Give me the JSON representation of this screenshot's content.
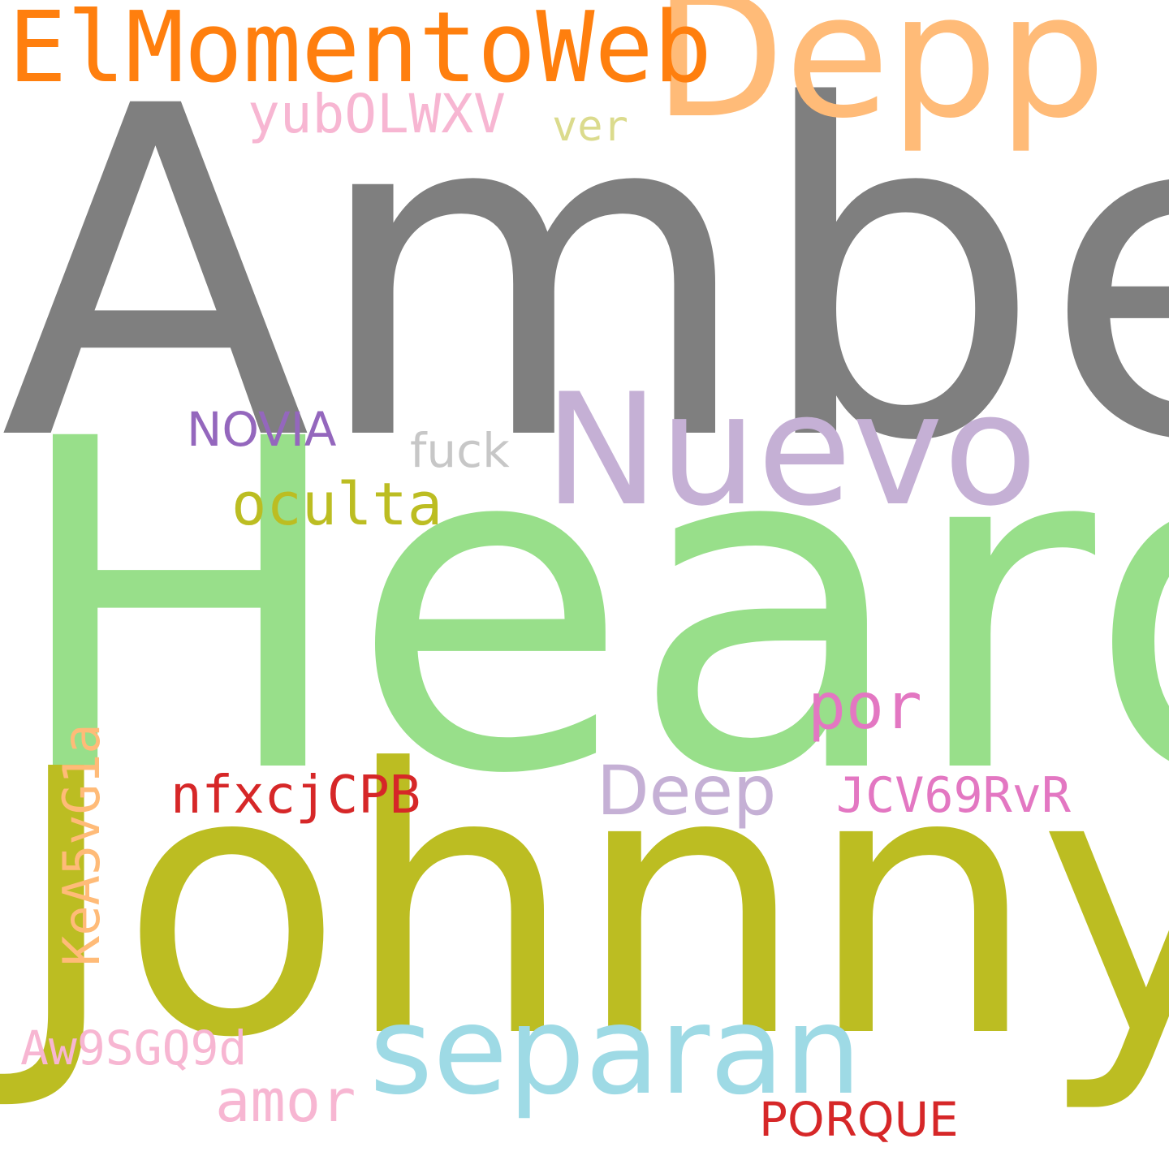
{
  "words": [
    {
      "key": "amber",
      "text": "Amber",
      "color": "#7f7f7f"
    },
    {
      "key": "heard",
      "text": "Heard",
      "color": "#98df8a"
    },
    {
      "key": "johnny",
      "text": "Johnny",
      "color": "#bcbd22"
    },
    {
      "key": "depp",
      "text": "Depp",
      "color": "#ffbb78"
    },
    {
      "key": "elmom",
      "text": "ElMomentoWeb",
      "color": "#ff7f0e"
    },
    {
      "key": "nuevo",
      "text": "Nuevo",
      "color": "#c5b0d5"
    },
    {
      "key": "separan",
      "text": "separan",
      "color": "#9edae5"
    },
    {
      "key": "yub",
      "text": "yubOLWXV",
      "color": "#f7b6d2"
    },
    {
      "key": "ver",
      "text": "ver",
      "color": "#dbdb8d"
    },
    {
      "key": "novia",
      "text": "NOVIA",
      "color": "#9467bd"
    },
    {
      "key": "fuck",
      "text": "fuck",
      "color": "#c7c7c7"
    },
    {
      "key": "oculta",
      "text": "oculta",
      "color": "#bcbd22"
    },
    {
      "key": "por",
      "text": "por",
      "color": "#e377c2"
    },
    {
      "key": "deep",
      "text": "Deep",
      "color": "#c5b0d5"
    },
    {
      "key": "nfx",
      "text": "nfxcjCPB",
      "color": "#d62728"
    },
    {
      "key": "jcv",
      "text": "JCV69RvR",
      "color": "#e377c2"
    },
    {
      "key": "kea",
      "text": "KeA5vG1a",
      "color": "#ffbb78"
    },
    {
      "key": "aw9",
      "text": "Aw9SGQ9d",
      "color": "#f7b6d2"
    },
    {
      "key": "amor",
      "text": "amor",
      "color": "#f7b6d2"
    },
    {
      "key": "porque",
      "text": "PORQUE",
      "color": "#d62728"
    }
  ]
}
